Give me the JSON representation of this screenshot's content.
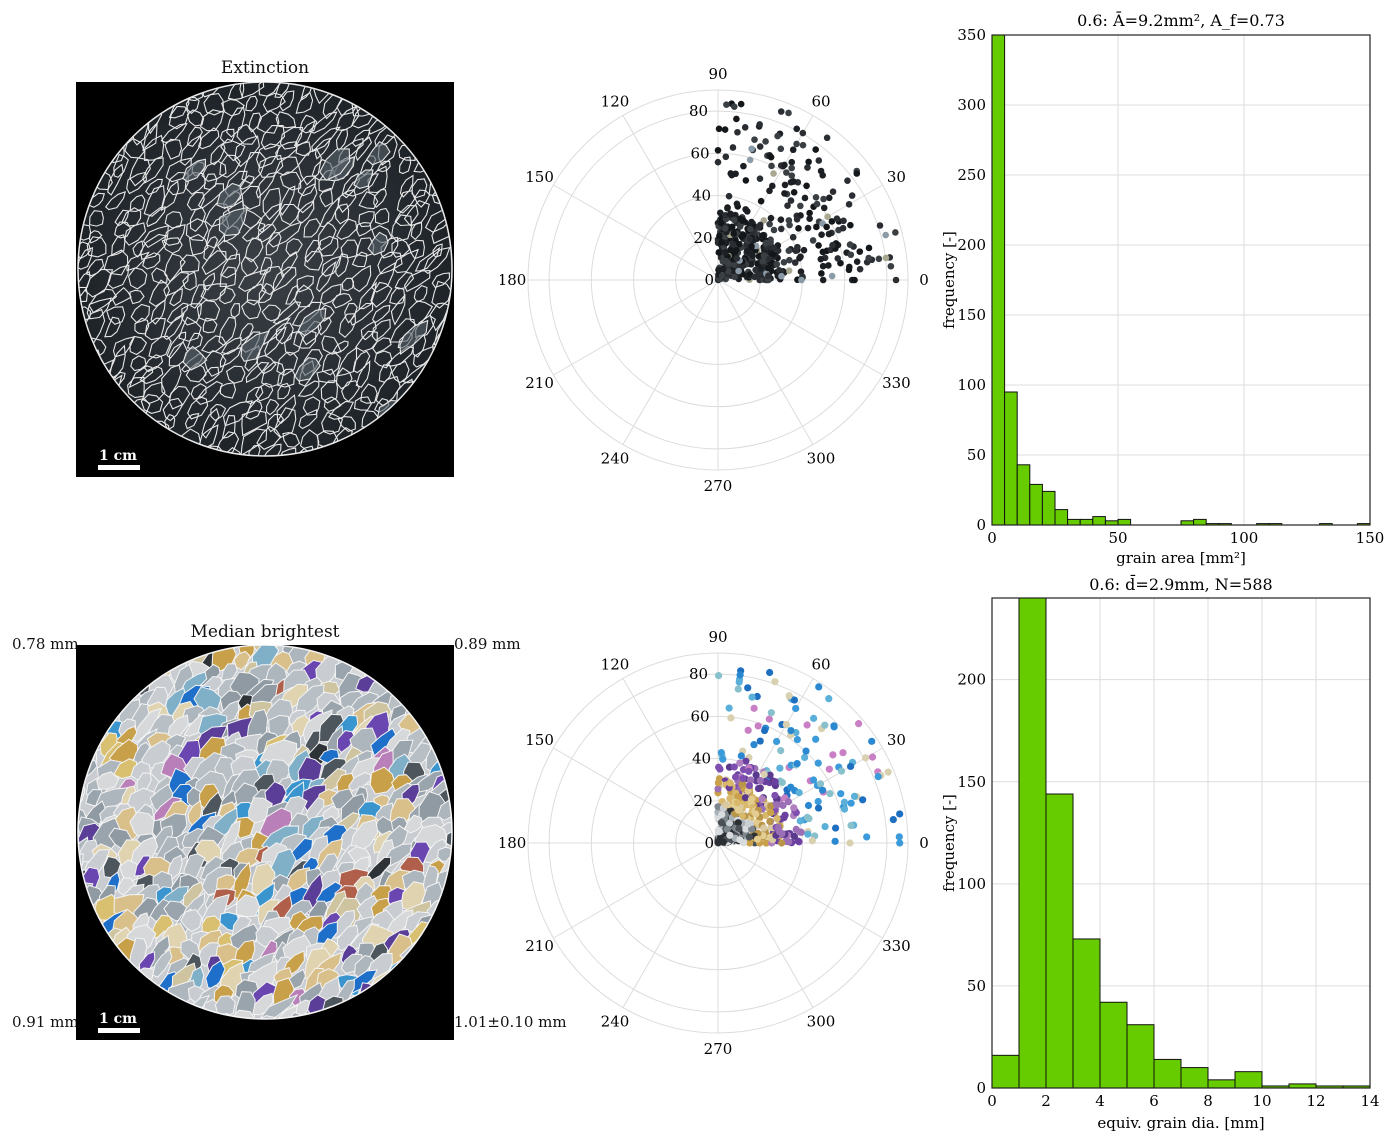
{
  "panels": {
    "extinction_title": "Extinction",
    "median_title": "Median brightest",
    "scalebar_label": "1 cm",
    "corners": {
      "top_left": "0.78 mm",
      "top_right": "0.89 mm",
      "bottom_left": "0.91 mm",
      "bottom_right": "1.01±0.10 mm"
    }
  },
  "polar": {
    "angle_labels": [
      "0",
      "30",
      "60",
      "90",
      "120",
      "150",
      "180",
      "210",
      "240",
      "270",
      "300",
      "330"
    ],
    "radial_labels": [
      "0",
      "20",
      "40",
      "60",
      "80"
    ]
  },
  "colors": {
    "bar": "#66cc00",
    "bar_edge": "#111111",
    "grid": "#dddddd",
    "axis": "#222222"
  },
  "chart_data": [
    {
      "type": "bar",
      "title": "0.6: Ā=9.2mm², A_f=0.73",
      "xlabel": "grain area [mm²]",
      "ylabel": "frequency [-]",
      "xlim": [
        0,
        150
      ],
      "ylim": [
        0,
        350
      ],
      "xticks": [
        "0",
        "50",
        "100",
        "150"
      ],
      "yticks": [
        "0",
        "50",
        "100",
        "150",
        "200",
        "250",
        "300",
        "350"
      ],
      "bin_width": 5,
      "values": [
        351,
        95,
        43,
        29,
        24,
        11,
        4,
        4,
        6,
        3,
        4,
        0,
        0,
        0,
        0,
        3,
        4,
        1,
        1,
        0,
        0,
        1,
        1,
        0,
        0,
        0,
        1,
        0,
        0,
        1
      ]
    },
    {
      "type": "bar",
      "title": "0.6: d̄=2.9mm, N=588",
      "xlabel": "equiv. grain dia. [mm]",
      "ylabel": "frequency [-]",
      "xlim": [
        0,
        14
      ],
      "ylim": [
        0,
        240
      ],
      "xticks": [
        "0",
        "2",
        "4",
        "6",
        "8",
        "10",
        "12",
        "14"
      ],
      "yticks": [
        "0",
        "50",
        "100",
        "150",
        "200"
      ],
      "bin_width": 1,
      "values": [
        16,
        240,
        144,
        73,
        42,
        31,
        14,
        10,
        4,
        8,
        1,
        2,
        1,
        1
      ]
    }
  ]
}
